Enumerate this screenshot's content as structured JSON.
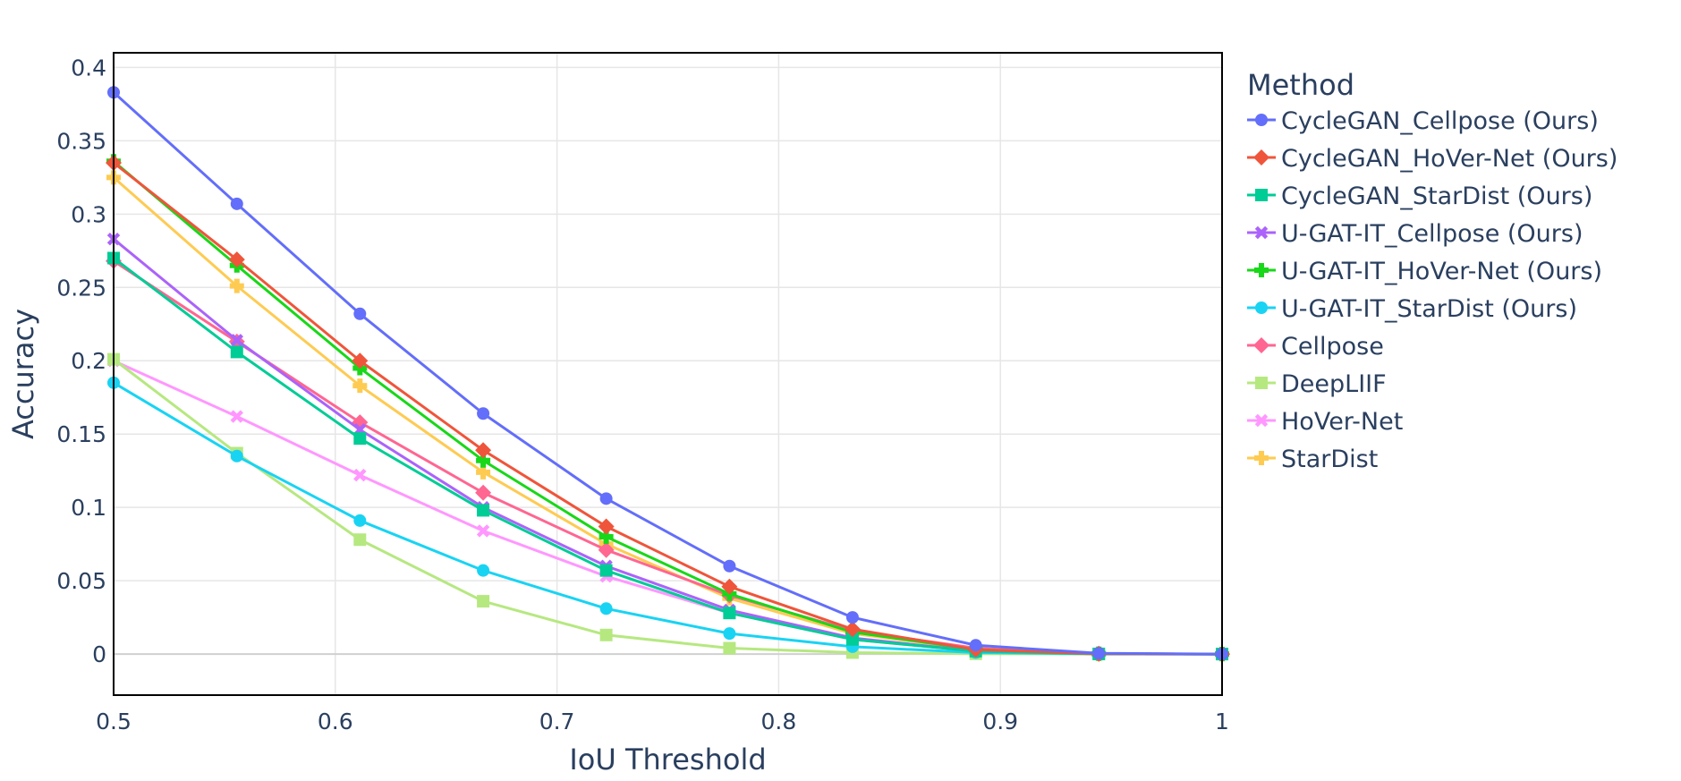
{
  "chart_data": {
    "type": "line",
    "title": "",
    "xlabel": "IoU Threshold",
    "ylabel": "Accuracy",
    "xlim": [
      0.5,
      1.0
    ],
    "ylim": [
      -0.028,
      0.41
    ],
    "xticks": [
      0.5,
      0.6,
      0.7,
      0.8,
      0.9,
      1.0
    ],
    "xtick_labels": [
      "0.5",
      "0.6",
      "0.7",
      "0.8",
      "0.9",
      "1"
    ],
    "yticks": [
      0,
      0.05,
      0.1,
      0.15,
      0.2,
      0.25,
      0.3,
      0.35,
      0.4
    ],
    "ytick_labels": [
      "0",
      "0.05",
      "0.1",
      "0.15",
      "0.2",
      "0.25",
      "0.3",
      "0.35",
      "0.4"
    ],
    "grid": true,
    "legend_title": "Method",
    "legend_placement": "right",
    "x": [
      0.5,
      0.5556,
      0.6111,
      0.6667,
      0.7222,
      0.7778,
      0.8333,
      0.8889,
      0.9444,
      1.0
    ],
    "series": [
      {
        "name": "CycleGAN_Cellpose (Ours)",
        "color": "#636efa",
        "marker": "circle",
        "values": [
          0.383,
          0.307,
          0.232,
          0.164,
          0.106,
          0.06,
          0.025,
          0.006,
          0.0005,
          0
        ]
      },
      {
        "name": "CycleGAN_HoVer-Net (Ours)",
        "color": "#ef553b",
        "marker": "diamond",
        "values": [
          0.335,
          0.269,
          0.2,
          0.139,
          0.087,
          0.046,
          0.017,
          0.003,
          0.0002,
          0
        ]
      },
      {
        "name": "CycleGAN_StarDist (Ours)",
        "color": "#00cc96",
        "marker": "square",
        "values": [
          0.27,
          0.206,
          0.147,
          0.098,
          0.057,
          0.028,
          0.01,
          0.002,
          0.0001,
          0
        ]
      },
      {
        "name": "U-GAT-IT_Cellpose (Ours)",
        "color": "#ab63fa",
        "marker": "x",
        "values": [
          0.283,
          0.214,
          0.153,
          0.1,
          0.06,
          0.03,
          0.011,
          0.002,
          0.0001,
          0
        ]
      },
      {
        "name": "U-GAT-IT_HoVer-Net (Ours)",
        "color": "#19d719",
        "marker": "cross",
        "values": [
          0.336,
          0.265,
          0.195,
          0.132,
          0.08,
          0.041,
          0.015,
          0.003,
          0.0002,
          0
        ]
      },
      {
        "name": "U-GAT-IT_StarDist (Ours)",
        "color": "#19d3f3",
        "marker": "circle",
        "values": [
          0.185,
          0.135,
          0.091,
          0.057,
          0.031,
          0.014,
          0.005,
          0.001,
          0.0001,
          0
        ]
      },
      {
        "name": "Cellpose",
        "color": "#ff6692",
        "marker": "diamond",
        "values": [
          0.268,
          0.213,
          0.158,
          0.11,
          0.071,
          0.04,
          0.016,
          0.004,
          0.0002,
          0
        ]
      },
      {
        "name": "DeepLIIF",
        "color": "#b6e880",
        "marker": "square",
        "values": [
          0.201,
          0.137,
          0.078,
          0.036,
          0.013,
          0.004,
          0.001,
          0.0002,
          0,
          0
        ]
      },
      {
        "name": "HoVer-Net",
        "color": "#ff97ff",
        "marker": "x",
        "values": [
          0.2,
          0.162,
          0.122,
          0.084,
          0.053,
          0.028,
          0.01,
          0.002,
          0.0001,
          0
        ]
      },
      {
        "name": "StarDist",
        "color": "#fecb52",
        "marker": "cross",
        "values": [
          0.325,
          0.251,
          0.183,
          0.124,
          0.075,
          0.038,
          0.014,
          0.003,
          0.0002,
          0
        ]
      }
    ]
  }
}
